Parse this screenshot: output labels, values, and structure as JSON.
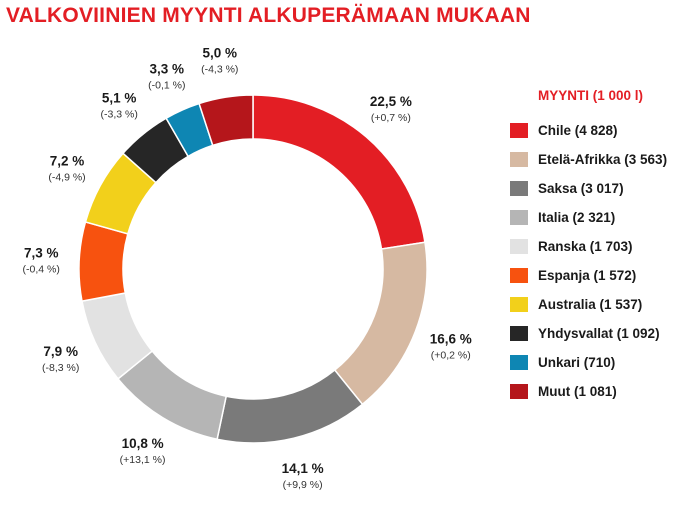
{
  "title": "VALKOVIINIEN MYYNTI ALKUPERÄMAAN MUKAAN",
  "chart_data": {
    "type": "pie",
    "donut": true,
    "legend_title": "MYYNTI (1 000 l)",
    "legend_position": "right",
    "slices": [
      {
        "name": "Chile",
        "legend_label": "Chile (4 828)",
        "sales": 4828,
        "percent": 22.5,
        "percent_label": "22,5 %",
        "change_label": "(+0,7 %)",
        "color": "#e31e24"
      },
      {
        "name": "Etelä-Afrikka",
        "legend_label": "Etelä-Afrikka (3 563)",
        "sales": 3563,
        "percent": 16.6,
        "percent_label": "16,6 %",
        "change_label": "(+0,2 %)",
        "color": "#d6b9a2"
      },
      {
        "name": "Saksa",
        "legend_label": "Saksa (3 017)",
        "sales": 3017,
        "percent": 14.1,
        "percent_label": "14,1 %",
        "change_label": "(+9,9 %)",
        "color": "#7a7a7a"
      },
      {
        "name": "Italia",
        "legend_label": "Italia (2 321)",
        "sales": 2321,
        "percent": 10.8,
        "percent_label": "10,8 %",
        "change_label": "(+13,1 %)",
        "color": "#b5b5b5"
      },
      {
        "name": "Ranska",
        "legend_label": "Ranska (1 703)",
        "sales": 1703,
        "percent": 7.9,
        "percent_label": "7,9 %",
        "change_label": "(-8,3 %)",
        "color": "#e2e2e2"
      },
      {
        "name": "Espanja",
        "legend_label": "Espanja (1 572)",
        "sales": 1572,
        "percent": 7.3,
        "percent_label": "7,3 %",
        "change_label": "(-0,4 %)",
        "color": "#f7520f"
      },
      {
        "name": "Australia",
        "legend_label": "Australia (1 537)",
        "sales": 1537,
        "percent": 7.2,
        "percent_label": "7,2 %",
        "change_label": "(-4,9 %)",
        "color": "#f2d01b"
      },
      {
        "name": "Yhdysvallat",
        "legend_label": "Yhdysvallat (1 092)",
        "sales": 1092,
        "percent": 5.1,
        "percent_label": "5,1 %",
        "change_label": "(-3,3 %)",
        "color": "#262626"
      },
      {
        "name": "Unkari",
        "legend_label": "Unkari (710)",
        "sales": 710,
        "percent": 3.3,
        "percent_label": "3,3 %",
        "change_label": "(-0,1 %)",
        "color": "#0e86b3"
      },
      {
        "name": "Muut",
        "legend_label": "Muut (1 081)",
        "sales": 1081,
        "percent": 5.0,
        "percent_label": "5,0 %",
        "change_label": "(-4,3 %)",
        "color": "#b5161b"
      }
    ]
  }
}
